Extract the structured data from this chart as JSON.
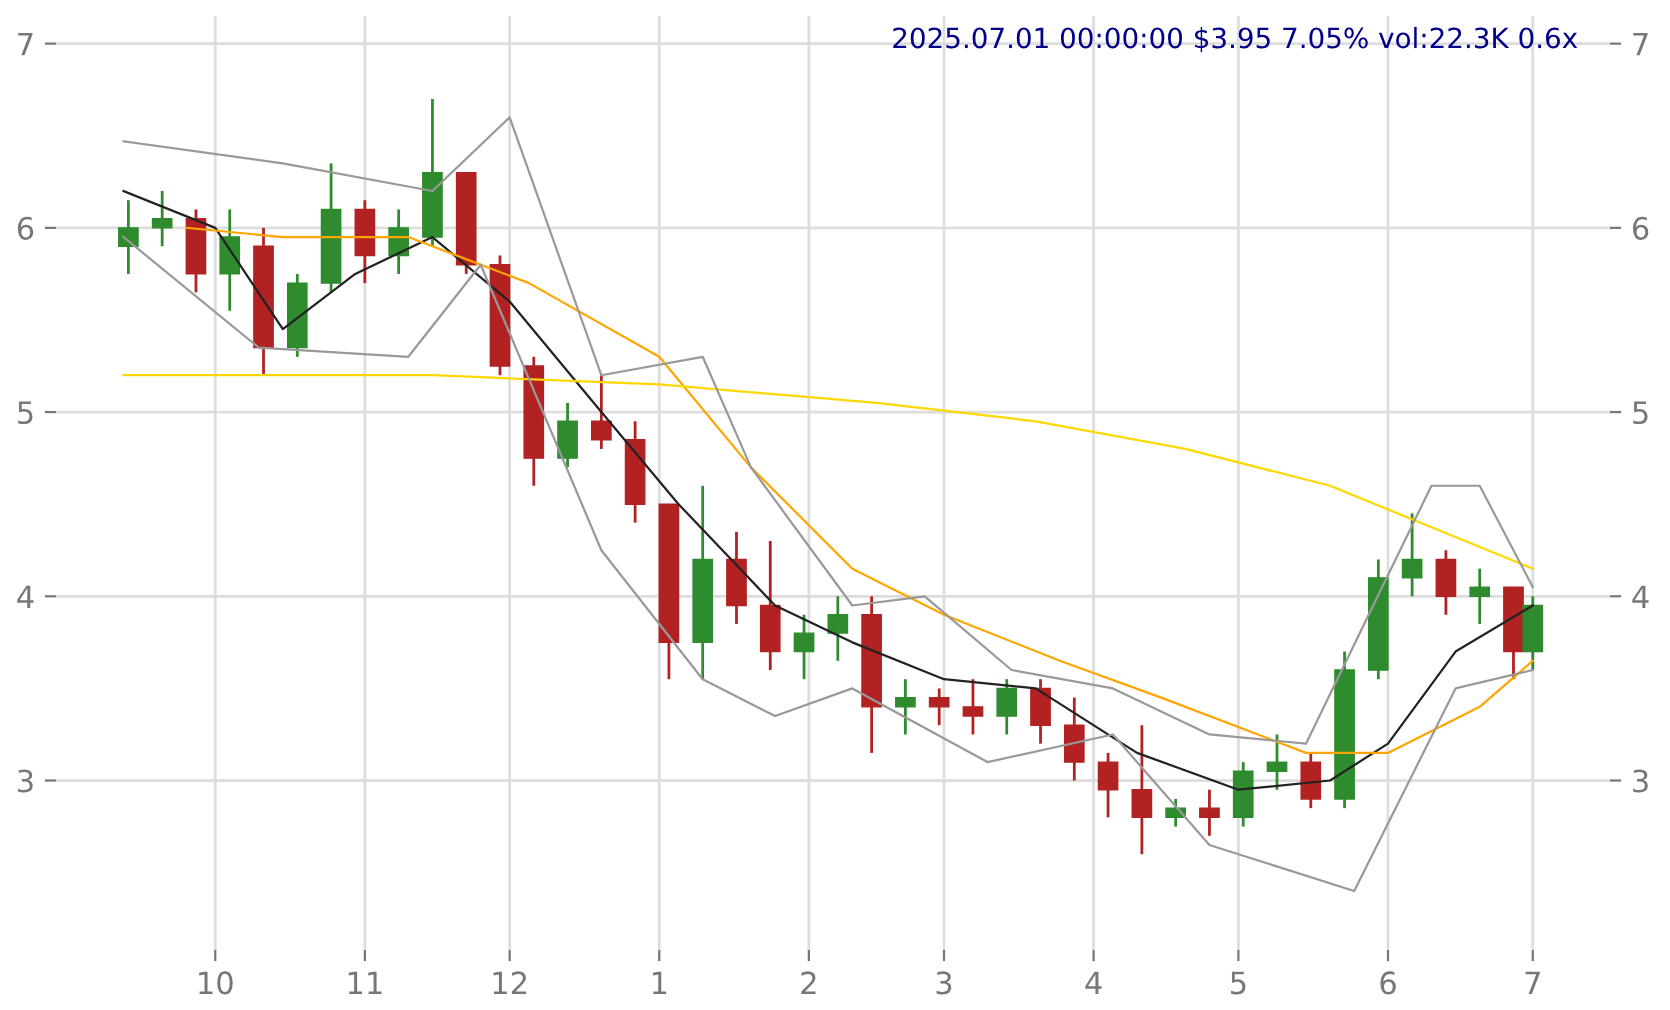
{
  "chart_data": {
    "type": "candlestick",
    "title": "2025.07.01 00:00:00 $3.95 7.05% vol:22.3K 0.6x",
    "x": [
      "2024-09-13",
      "2024-09-20",
      "2024-09-27",
      "2024-10-04",
      "2024-10-11",
      "2024-10-18",
      "2024-10-25",
      "2024-11-01",
      "2024-11-08",
      "2024-11-15",
      "2024-11-22",
      "2024-11-29",
      "2024-12-06",
      "2024-12-13",
      "2024-12-20",
      "2024-12-27",
      "2025-01-03",
      "2025-01-10",
      "2025-01-17",
      "2025-01-24",
      "2025-01-31",
      "2025-02-07",
      "2025-02-14",
      "2025-02-21",
      "2025-02-28",
      "2025-03-07",
      "2025-03-14",
      "2025-03-21",
      "2025-03-28",
      "2025-04-04",
      "2025-04-11",
      "2025-04-18",
      "2025-04-25",
      "2025-05-02",
      "2025-05-09",
      "2025-05-16",
      "2025-05-23",
      "2025-05-30",
      "2025-06-06",
      "2025-06-13",
      "2025-06-20",
      "2025-06-27",
      "2025-07-01"
    ],
    "ohlc": [
      [
        5.9,
        6.15,
        5.75,
        6.0
      ],
      [
        6.0,
        6.2,
        5.9,
        6.05
      ],
      [
        6.05,
        6.1,
        5.65,
        5.75
      ],
      [
        5.75,
        6.1,
        5.55,
        5.95
      ],
      [
        5.9,
        6.0,
        5.2,
        5.35
      ],
      [
        5.35,
        5.75,
        5.3,
        5.7
      ],
      [
        5.7,
        6.35,
        5.65,
        6.1
      ],
      [
        6.1,
        6.15,
        5.7,
        5.85
      ],
      [
        5.85,
        6.1,
        5.75,
        6.0
      ],
      [
        5.95,
        6.7,
        5.9,
        6.3
      ],
      [
        6.3,
        6.3,
        5.75,
        5.8
      ],
      [
        5.8,
        5.85,
        5.2,
        5.25
      ],
      [
        5.25,
        5.3,
        4.6,
        4.75
      ],
      [
        4.75,
        5.05,
        4.7,
        4.95
      ],
      [
        4.95,
        5.2,
        4.8,
        4.85
      ],
      [
        4.85,
        4.95,
        4.4,
        4.5
      ],
      [
        4.5,
        4.5,
        3.55,
        3.75
      ],
      [
        3.75,
        4.6,
        3.55,
        4.2
      ],
      [
        4.2,
        4.35,
        3.85,
        3.95
      ],
      [
        3.95,
        4.3,
        3.6,
        3.7
      ],
      [
        3.7,
        3.9,
        3.55,
        3.8
      ],
      [
        3.8,
        4.0,
        3.65,
        3.9
      ],
      [
        3.9,
        4.0,
        3.15,
        3.4
      ],
      [
        3.4,
        3.55,
        3.25,
        3.45
      ],
      [
        3.45,
        3.5,
        3.3,
        3.4
      ],
      [
        3.4,
        3.55,
        3.25,
        3.35
      ],
      [
        3.35,
        3.55,
        3.25,
        3.5
      ],
      [
        3.5,
        3.55,
        3.2,
        3.3
      ],
      [
        3.3,
        3.45,
        3.0,
        3.1
      ],
      [
        3.1,
        3.15,
        2.8,
        2.95
      ],
      [
        2.95,
        3.3,
        2.6,
        2.8
      ],
      [
        2.8,
        2.9,
        2.75,
        2.85
      ],
      [
        2.85,
        2.95,
        2.7,
        2.8
      ],
      [
        2.8,
        3.1,
        2.75,
        3.05
      ],
      [
        3.05,
        3.25,
        2.95,
        3.1
      ],
      [
        3.1,
        3.15,
        2.85,
        2.9
      ],
      [
        2.9,
        3.7,
        2.85,
        3.6
      ],
      [
        3.6,
        4.2,
        3.55,
        4.1
      ],
      [
        4.1,
        4.45,
        4.0,
        4.2
      ],
      [
        4.2,
        4.25,
        3.9,
        4.0
      ],
      [
        4.0,
        4.15,
        3.85,
        4.05
      ],
      [
        4.05,
        4.05,
        3.55,
        3.7
      ],
      [
        3.7,
        4.0,
        3.6,
        3.95
      ]
    ],
    "colors": [
      "#2e8b2e",
      "#2e8b2e",
      "#b22222",
      "#2e8b2e",
      "#b22222",
      "#2e8b2e",
      "#2e8b2e",
      "#b22222",
      "#2e8b2e",
      "#2e8b2e",
      "#b22222",
      "#b22222",
      "#b22222",
      "#2e8b2e",
      "#b22222",
      "#b22222",
      "#b22222",
      "#2e8b2e",
      "#b22222",
      "#b22222",
      "#2e8b2e",
      "#2e8b2e",
      "#b22222",
      "#2e8b2e",
      "#b22222",
      "#b22222",
      "#2e8b2e",
      "#b22222",
      "#b22222",
      "#b22222",
      "#b22222",
      "#2e8b2e",
      "#b22222",
      "#2e8b2e",
      "#2e8b2e",
      "#b22222",
      "#2e8b2e",
      "#2e8b2e",
      "#2e8b2e",
      "#b22222",
      "#2e8b2e",
      "#b22222",
      "#2e8b2e"
    ],
    "series": [
      {
        "type": "line",
        "color": "#222222",
        "x": [
          "2024-09-12",
          "2024-10-01",
          "2024-10-15",
          "2024-10-30",
          "2024-11-15",
          "2024-12-01",
          "2024-12-20",
          "2025-01-05",
          "2025-01-25",
          "2025-02-10",
          "2025-03-01",
          "2025-03-20",
          "2025-04-10",
          "2025-05-01",
          "2025-05-20",
          "2025-06-01",
          "2025-06-15",
          "2025-07-01"
        ],
        "values": [
          6.2,
          6.0,
          5.45,
          5.75,
          5.95,
          5.6,
          5.0,
          4.5,
          3.95,
          3.75,
          3.55,
          3.5,
          3.15,
          2.95,
          3.0,
          3.2,
          3.7,
          3.95
        ]
      },
      {
        "type": "line",
        "color": "#ffa500",
        "x": [
          "2024-09-25",
          "2024-10-15",
          "2024-11-10",
          "2024-12-05",
          "2025-01-01",
          "2025-01-20",
          "2025-02-10",
          "2025-03-01",
          "2025-03-25",
          "2025-04-15",
          "2025-05-15",
          "2025-06-01",
          "2025-06-20",
          "2025-07-01"
        ],
        "values": [
          6.0,
          5.95,
          5.95,
          5.7,
          5.3,
          4.7,
          4.15,
          3.9,
          3.65,
          3.45,
          3.15,
          3.15,
          3.4,
          3.65
        ]
      },
      {
        "type": "line",
        "color": "#ffd700",
        "x": [
          "2024-09-12",
          "2024-11-15",
          "2025-01-01",
          "2025-02-15",
          "2025-03-20",
          "2025-04-20",
          "2025-05-20",
          "2025-07-01"
        ],
        "values": [
          5.2,
          5.2,
          5.15,
          5.05,
          4.95,
          4.8,
          4.6,
          4.15
        ]
      },
      {
        "type": "line",
        "color": "#999999",
        "x": [
          "2024-09-12",
          "2024-10-15",
          "2024-11-15",
          "2024-12-01",
          "2024-12-20",
          "2025-01-10",
          "2025-01-20",
          "2025-02-10",
          "2025-02-25",
          "2025-03-15",
          "2025-04-05",
          "2025-04-25",
          "2025-05-15",
          "2025-06-10",
          "2025-06-20",
          "2025-07-01"
        ],
        "values": [
          6.47,
          6.35,
          6.2,
          6.6,
          5.2,
          5.3,
          4.7,
          3.95,
          4.0,
          3.6,
          3.5,
          3.25,
          3.2,
          4.6,
          4.6,
          4.05
        ]
      },
      {
        "type": "line",
        "color": "#999999",
        "x": [
          "2024-09-12",
          "2024-10-10",
          "2024-11-10",
          "2024-11-25",
          "2024-12-20",
          "2025-01-10",
          "2025-01-25",
          "2025-02-10",
          "2025-03-10",
          "2025-04-05",
          "2025-04-25",
          "2025-05-25",
          "2025-06-15",
          "2025-07-01"
        ],
        "values": [
          5.95,
          5.35,
          5.3,
          5.8,
          4.25,
          3.55,
          3.35,
          3.5,
          3.1,
          3.25,
          2.65,
          2.4,
          3.5,
          3.6
        ]
      }
    ],
    "xlim": [
      "2024-08-29",
      "2025-07-17"
    ],
    "xticks": [
      {
        "value": "2024-10-01",
        "label": "10"
      },
      {
        "value": "2024-11-01",
        "label": "11"
      },
      {
        "value": "2024-12-01",
        "label": "12"
      },
      {
        "value": "2025-01-01",
        "label": "1"
      },
      {
        "value": "2025-02-01",
        "label": "2"
      },
      {
        "value": "2025-03-01",
        "label": "3"
      },
      {
        "value": "2025-04-01",
        "label": "4"
      },
      {
        "value": "2025-05-01",
        "label": "5"
      },
      {
        "value": "2025-06-01",
        "label": "6"
      },
      {
        "value": "2025-07-01",
        "label": "7"
      }
    ],
    "ylim": [
      2.08,
      7.15
    ],
    "yticks": [
      3,
      4,
      5,
      6,
      7
    ],
    "y2lim": [
      2.08,
      7.15
    ],
    "y2ticks": [
      3,
      4,
      5,
      6,
      7
    ],
    "grid": true
  }
}
